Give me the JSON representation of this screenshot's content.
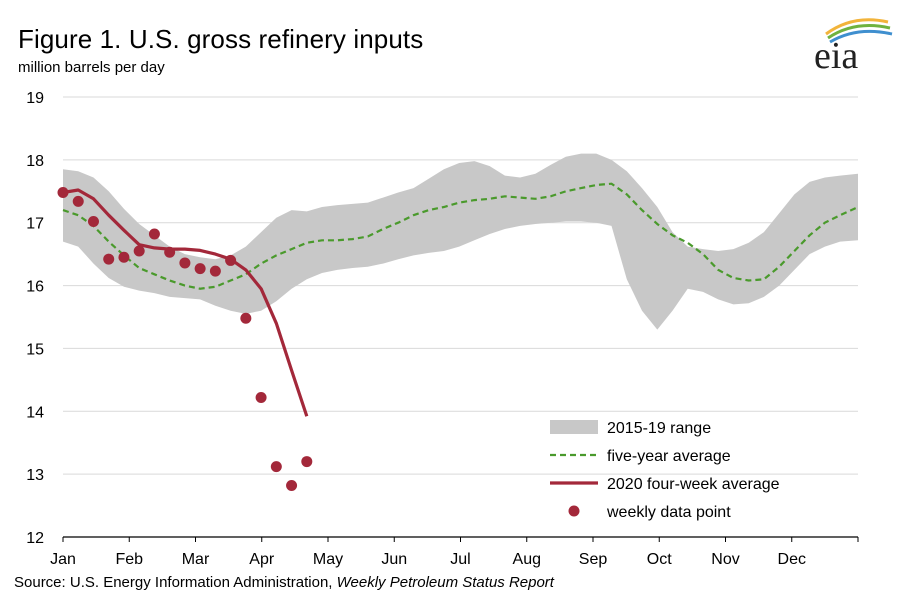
{
  "title": "Figure 1. U.S. gross refinery inputs",
  "subtitle": "million barrels per day",
  "source": {
    "prefix": "Source: U.S. Energy Information Administration, ",
    "report": "Weekly Petroleum Status Report"
  },
  "logo_text": "eia",
  "colors": {
    "range_fill": "#c8c8c8",
    "five_year_line": "#4a9a2c",
    "four_week_line": "#a3283a",
    "weekly_points": "#a3283a",
    "gridline": "#d9d9d9",
    "axis": "#000000"
  },
  "chart_data": {
    "type": "line",
    "title": "Figure 1. U.S. gross refinery inputs",
    "ylabel": "million barrels per day",
    "xlabel": "",
    "x_unit": "month (0 = Jan 1, 12 = Dec 31)",
    "xlim": [
      0,
      12
    ],
    "ylim": [
      12,
      19
    ],
    "yticks": [
      12,
      13,
      14,
      15,
      16,
      17,
      18,
      19
    ],
    "months": [
      "Jan",
      "Feb",
      "Mar",
      "Apr",
      "May",
      "Jun",
      "Jul",
      "Aug",
      "Sep",
      "Oct",
      "Nov",
      "Dec"
    ],
    "legend": [
      {
        "key": "range",
        "label": "2015-19 range"
      },
      {
        "key": "avg",
        "label": "five-year average"
      },
      {
        "key": "four_week",
        "label": "2020 four-week average"
      },
      {
        "key": "weekly",
        "label": "weekly data point"
      }
    ],
    "series": [
      {
        "name": "2015-19 range",
        "kind": "band",
        "x": [
          0.0,
          0.23,
          0.46,
          0.69,
          0.92,
          1.15,
          1.38,
          1.61,
          1.84,
          2.07,
          2.3,
          2.53,
          2.76,
          2.99,
          3.22,
          3.45,
          3.68,
          3.91,
          4.14,
          4.37,
          4.6,
          4.83,
          5.06,
          5.29,
          5.52,
          5.75,
          5.98,
          6.21,
          6.44,
          6.67,
          6.9,
          7.13,
          7.36,
          7.59,
          7.82,
          8.05,
          8.28,
          8.51,
          8.74,
          8.97,
          9.2,
          9.43,
          9.66,
          9.89,
          10.12,
          10.35,
          10.58,
          10.81,
          11.04,
          11.27,
          11.5,
          11.73,
          12.0
        ],
        "high": [
          17.85,
          17.82,
          17.72,
          17.5,
          17.22,
          16.98,
          16.8,
          16.62,
          16.5,
          16.45,
          16.42,
          16.48,
          16.62,
          16.85,
          17.08,
          17.2,
          17.18,
          17.25,
          17.28,
          17.3,
          17.32,
          17.4,
          17.48,
          17.55,
          17.7,
          17.85,
          17.95,
          17.98,
          17.9,
          17.75,
          17.72,
          17.78,
          17.92,
          18.05,
          18.1,
          18.1,
          18.0,
          17.82,
          17.55,
          17.25,
          16.85,
          16.62,
          16.58,
          16.55,
          16.58,
          16.68,
          16.85,
          17.15,
          17.45,
          17.65,
          17.72,
          17.75,
          17.78
        ],
        "low": [
          16.7,
          16.62,
          16.35,
          16.12,
          15.98,
          15.92,
          15.88,
          15.82,
          15.8,
          15.78,
          15.68,
          15.6,
          15.55,
          15.6,
          15.75,
          15.95,
          16.1,
          16.2,
          16.25,
          16.28,
          16.3,
          16.35,
          16.42,
          16.48,
          16.52,
          16.55,
          16.62,
          16.72,
          16.82,
          16.9,
          16.95,
          16.98,
          17.0,
          17.02,
          17.02,
          17.0,
          16.95,
          16.1,
          15.6,
          15.3,
          15.6,
          15.95,
          15.9,
          15.78,
          15.7,
          15.72,
          15.82,
          16.0,
          16.25,
          16.5,
          16.62,
          16.7,
          16.72
        ]
      },
      {
        "name": "five-year average",
        "kind": "dashed",
        "x": [
          0.0,
          0.23,
          0.46,
          0.69,
          0.92,
          1.15,
          1.38,
          1.61,
          1.84,
          2.07,
          2.3,
          2.53,
          2.76,
          2.99,
          3.22,
          3.45,
          3.68,
          3.91,
          4.14,
          4.37,
          4.6,
          4.83,
          5.06,
          5.29,
          5.52,
          5.75,
          5.98,
          6.21,
          6.44,
          6.67,
          6.9,
          7.13,
          7.36,
          7.59,
          7.82,
          8.05,
          8.28,
          8.51,
          8.74,
          8.97,
          9.2,
          9.43,
          9.66,
          9.89,
          10.12,
          10.35,
          10.58,
          10.81,
          11.04,
          11.27,
          11.5,
          11.73,
          12.0
        ],
        "values": [
          17.2,
          17.12,
          16.95,
          16.7,
          16.48,
          16.28,
          16.18,
          16.08,
          16.0,
          15.95,
          15.98,
          16.08,
          16.18,
          16.35,
          16.48,
          16.58,
          16.68,
          16.72,
          16.72,
          16.74,
          16.78,
          16.9,
          17.0,
          17.12,
          17.2,
          17.25,
          17.32,
          17.36,
          17.38,
          17.42,
          17.4,
          17.38,
          17.42,
          17.5,
          17.55,
          17.6,
          17.62,
          17.45,
          17.2,
          16.98,
          16.8,
          16.68,
          16.5,
          16.25,
          16.12,
          16.08,
          16.1,
          16.3,
          16.55,
          16.8,
          17.0,
          17.12,
          17.25
        ]
      },
      {
        "name": "2020 four-week average",
        "kind": "solid",
        "x": [
          0.0,
          0.23,
          0.46,
          0.69,
          0.92,
          1.15,
          1.38,
          1.61,
          1.84,
          2.07,
          2.3,
          2.53,
          2.76,
          2.99,
          3.22,
          3.45,
          3.68
        ],
        "values": [
          17.48,
          17.52,
          17.38,
          17.12,
          16.88,
          16.65,
          16.6,
          16.58,
          16.58,
          16.56,
          16.5,
          16.42,
          16.25,
          15.95,
          15.4,
          14.65,
          13.92
        ]
      },
      {
        "name": "weekly data point",
        "kind": "points",
        "x": [
          0.0,
          0.23,
          0.46,
          0.69,
          0.92,
          1.15,
          1.38,
          1.61,
          1.84,
          2.07,
          2.3,
          2.53,
          2.76,
          2.99,
          3.22,
          3.45,
          3.68,
          3.91
        ],
        "values": [
          17.48,
          17.34,
          17.02,
          16.42,
          16.45,
          16.55,
          16.82,
          16.53,
          16.36,
          16.27,
          16.23,
          16.4,
          15.48,
          14.22,
          13.12,
          12.82,
          13.2,
          null
        ]
      }
    ]
  }
}
